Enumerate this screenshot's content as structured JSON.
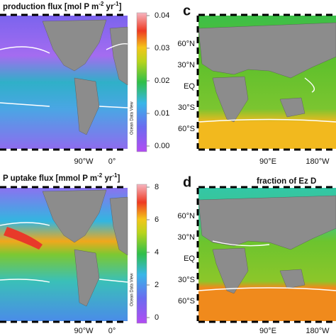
{
  "panels": [
    {
      "title_parts": [
        "production flux [mol P m",
        "-2",
        " yr",
        "-1",
        "]"
      ],
      "colorbar_ticks": [
        "0.04",
        "0.03",
        "0.02",
        "0.01",
        "0.00"
      ],
      "colorbar_label": "Ocean Data View",
      "x_labels": [
        "90°W",
        "0°"
      ]
    },
    {
      "title_parts": [
        "P uptake flux [mmol P m",
        "-2",
        " yr",
        "-1",
        "]"
      ],
      "colorbar_ticks": [
        "8",
        "6",
        "4",
        "2",
        "0"
      ],
      "colorbar_label": "Ocean Data View",
      "x_labels": [
        "90°W",
        "0°"
      ]
    },
    {
      "letter": "c",
      "y_labels": [
        "60°N",
        "30°N",
        "EQ",
        "30°S",
        "60°S"
      ],
      "x_labels": [
        "90°E",
        "180°W"
      ]
    },
    {
      "letter": "d",
      "title": "fraction of Ez D",
      "y_labels": [
        "60°N",
        "30°N",
        "EQ",
        "30°S",
        "60°S"
      ],
      "x_labels": [
        "90°E",
        "180°W"
      ]
    }
  ]
}
